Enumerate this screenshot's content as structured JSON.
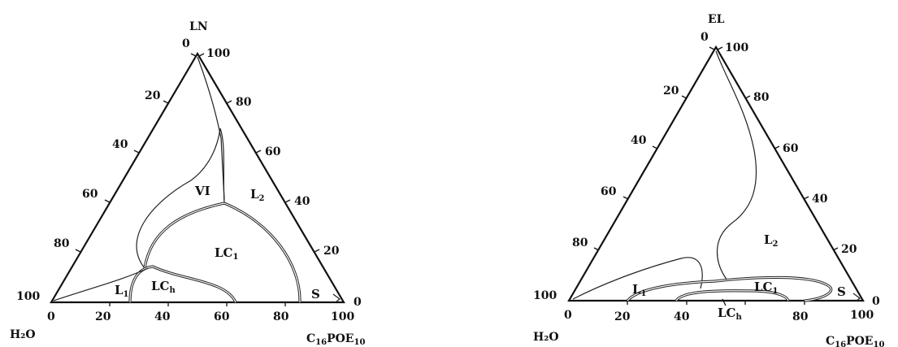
{
  "diagrams": [
    {
      "top_label": "LN",
      "left_label": "H₂O",
      "right_label_main": "C",
      "right_label_sub1": "16",
      "right_label_mid": "POE",
      "right_label_sub2": "10",
      "left_edge_ticks": [
        "0",
        "20",
        "40",
        "60",
        "80",
        "100"
      ],
      "right_edge_ticks": [
        "100",
        "80",
        "60",
        "40",
        "20",
        "0"
      ],
      "bottom_ticks": [
        "0",
        "20",
        "40",
        "60",
        "80",
        "100"
      ],
      "regions": {
        "vi": "VI",
        "l2_main": "L",
        "l2_sub": "2",
        "lc1_main": "LC",
        "lc1_sub": "1",
        "lch_main": "LC",
        "lch_sub": "h",
        "l1_main": "L",
        "l1_sub": "1",
        "s": "S"
      }
    },
    {
      "top_label": "EL",
      "left_label": "H₂O",
      "right_label_main": "C",
      "right_label_sub1": "16",
      "right_label_mid": "POE",
      "right_label_sub2": "10",
      "left_edge_ticks": [
        "0",
        "20",
        "40",
        "60",
        "80",
        "100"
      ],
      "right_edge_ticks": [
        "100",
        "80",
        "60",
        "40",
        "20",
        "0"
      ],
      "bottom_ticks": [
        "0",
        "20",
        "40",
        "60",
        "80",
        "100"
      ],
      "regions": {
        "l2_main": "L",
        "l2_sub": "2",
        "lc1_main": "LC",
        "lc1_sub": "1",
        "lch_main": "LC",
        "lch_sub": "h",
        "l1_main": "L",
        "l1_sub": "1",
        "s": "S"
      }
    }
  ]
}
